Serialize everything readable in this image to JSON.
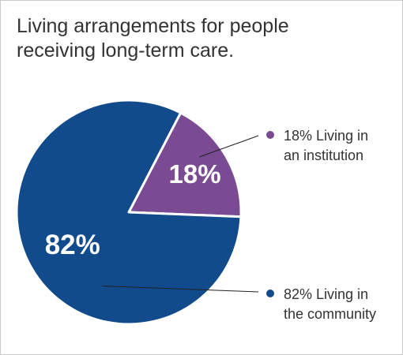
{
  "title_lines": [
    "Living arrangements for people",
    "receiving long-term care."
  ],
  "colors": {
    "community": "#114b8c",
    "institution": "#7a4a93",
    "leader_line": "#222222",
    "slice_border": "#ffffff"
  },
  "chart_data": {
    "type": "pie",
    "title": "Living arrangements for people receiving long-term care.",
    "grid": false,
    "slices": [
      {
        "label": "Living in an institution",
        "value": 18,
        "percent_label": "18%",
        "legend_lines": [
          "18% Living in",
          "an institution"
        ],
        "color": "#7a4a93"
      },
      {
        "label": "Living in the community",
        "value": 82,
        "percent_label": "82%",
        "legend_lines": [
          "82% Living in",
          "the community"
        ],
        "color": "#114b8c"
      }
    ]
  }
}
